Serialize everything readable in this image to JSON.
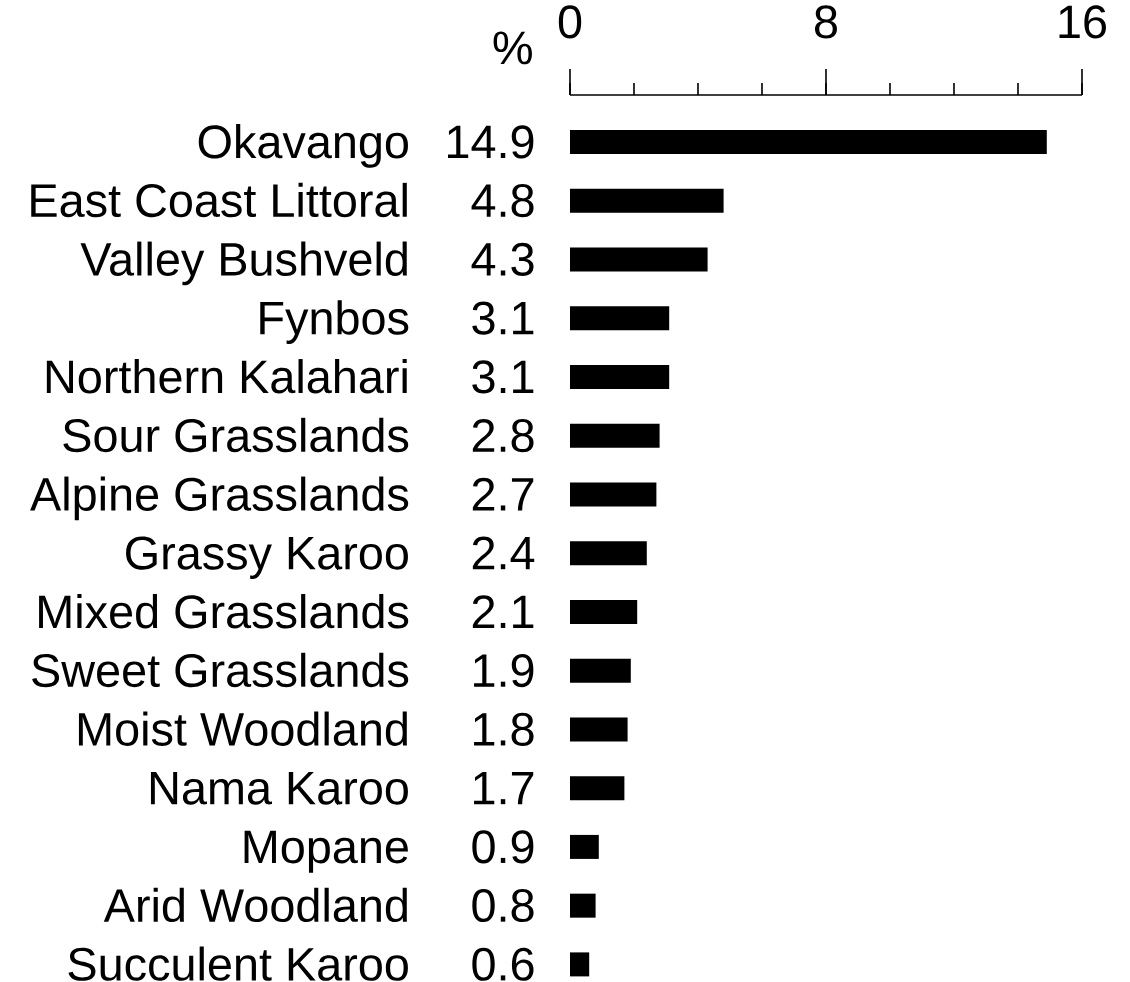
{
  "chart_data": {
    "type": "bar",
    "orientation": "horizontal",
    "xlabel": "%",
    "categories": [
      "Okavango",
      "East Coast Littoral",
      "Valley Bushveld",
      "Fynbos",
      "Northern Kalahari",
      "Sour Grasslands",
      "Alpine Grasslands",
      "Grassy Karoo",
      "Mixed Grasslands",
      "Sweet Grasslands",
      "Moist Woodland",
      "Nama Karoo",
      "Mopane",
      "Arid Woodland",
      "Succulent Karoo"
    ],
    "values": [
      14.9,
      4.8,
      4.3,
      3.1,
      3.1,
      2.8,
      2.7,
      2.4,
      2.1,
      1.9,
      1.8,
      1.7,
      0.9,
      0.8,
      0.6
    ],
    "color": "#000000",
    "data_labels": true,
    "xlim": [
      0,
      16
    ],
    "xticks": [
      0,
      {
        "value": 2,
        "label": null
      },
      {
        "value": 4,
        "label": null
      },
      {
        "value": 6,
        "label": null
      },
      8,
      {
        "value": 10,
        "label": null
      },
      {
        "value": 12,
        "label": null
      },
      {
        "value": 14,
        "label": null
      },
      16
    ],
    "grid": false
  }
}
